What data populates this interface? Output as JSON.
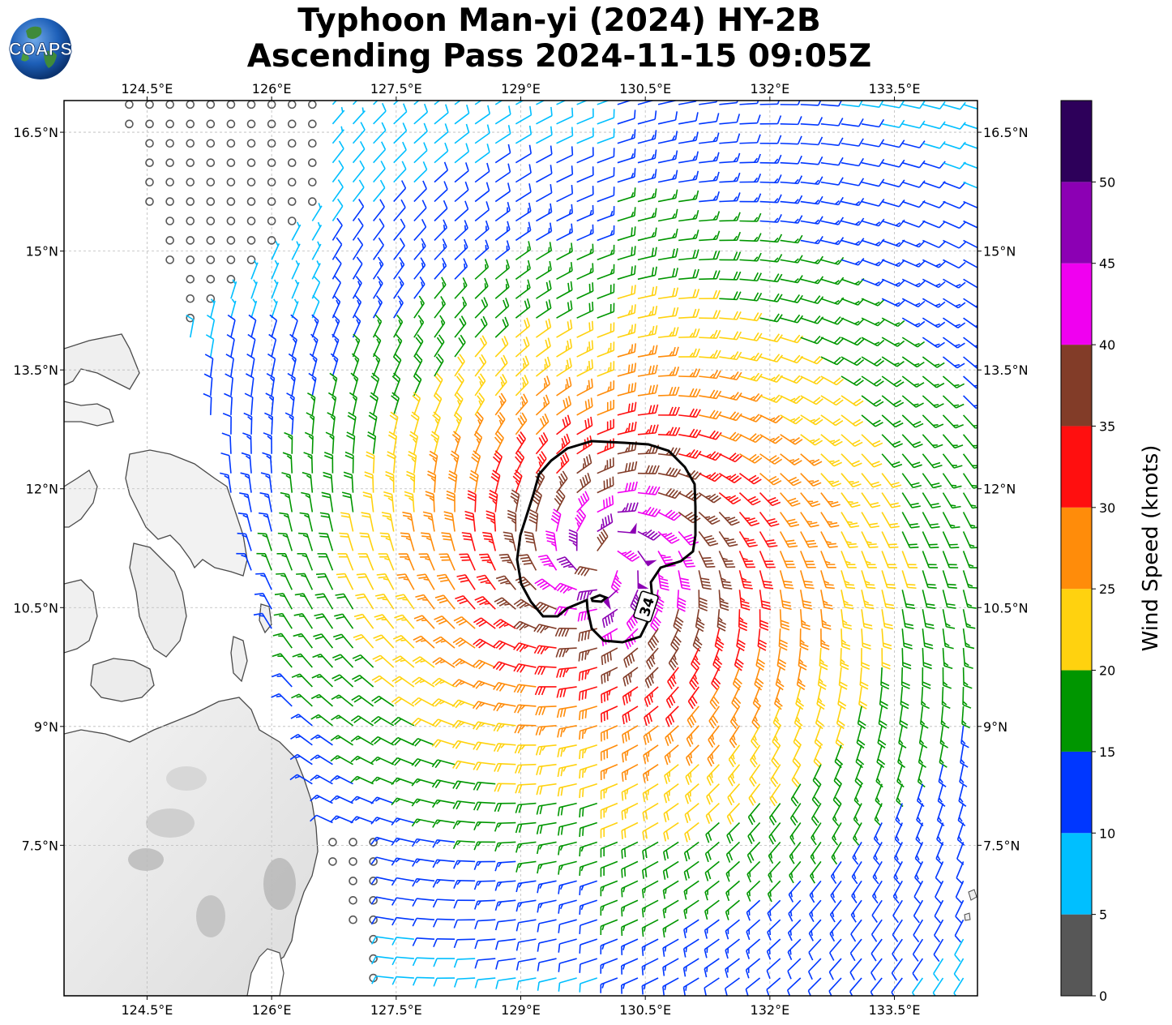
{
  "title": {
    "line1": "Typhoon Man-yi (2024) HY-2B",
    "line2": "Ascending Pass 2024-11-15 09:05Z"
  },
  "logo": {
    "text": "COAPS"
  },
  "chart_data": {
    "type": "wind-barb-map",
    "title": "Typhoon Man-yi (2024) HY-2B Ascending Pass 2024-11-15 09:05Z",
    "projection": "plate-carree",
    "xlim": [
      123.5,
      134.5
    ],
    "ylim": [
      5.6,
      16.9
    ],
    "x_ticks": [
      124.5,
      126,
      127.5,
      129,
      130.5,
      132,
      133.5
    ],
    "x_tick_labels": [
      "124.5°E",
      "126°E",
      "127.5°E",
      "129°E",
      "130.5°E",
      "132°E",
      "133.5°E"
    ],
    "y_ticks": [
      16.5,
      15,
      13.5,
      12,
      10.5,
      9,
      7.5
    ],
    "y_tick_labels": [
      "16.5°N",
      "15°N",
      "13.5°N",
      "12°N",
      "10.5°N",
      "9°N",
      "7.5°N"
    ],
    "grid": true,
    "storm_center": {
      "lon": 130.0,
      "lat": 11.1
    },
    "contour": {
      "label": "34",
      "level_knots": 34,
      "label_position": {
        "lon": 130.52,
        "lat": 10.8
      }
    },
    "swath": {
      "west_edge_north": [
        124.2,
        16.9
      ],
      "west_edge_south": [
        127.2,
        5.6
      ]
    },
    "colorbar": {
      "label": "Wind Speed (knots)",
      "ticks": [
        0,
        5,
        10,
        15,
        20,
        25,
        30,
        35,
        40,
        45,
        50
      ],
      "tick_labels": [
        "0",
        "5",
        "10",
        "15",
        "20",
        "25",
        "30",
        "35",
        "40",
        "45",
        "50"
      ],
      "bins": [
        {
          "min": 0,
          "max": 5,
          "color": "#575757"
        },
        {
          "min": 5,
          "max": 10,
          "color": "#00bfff"
        },
        {
          "min": 10,
          "max": 15,
          "color": "#0037ff"
        },
        {
          "min": 15,
          "max": 20,
          "color": "#009600"
        },
        {
          "min": 20,
          "max": 25,
          "color": "#ffd20f"
        },
        {
          "min": 25,
          "max": 30,
          "color": "#ff8c0a"
        },
        {
          "min": 30,
          "max": 35,
          "color": "#ff0f0f"
        },
        {
          "min": 35,
          "max": 40,
          "color": "#823c28"
        },
        {
          "min": 40,
          "max": 45,
          "color": "#f000f0"
        },
        {
          "min": 45,
          "max": 50,
          "color": "#8c00b4"
        },
        {
          "min": 50,
          "max": 55,
          "color": "#2d005a"
        }
      ]
    }
  }
}
